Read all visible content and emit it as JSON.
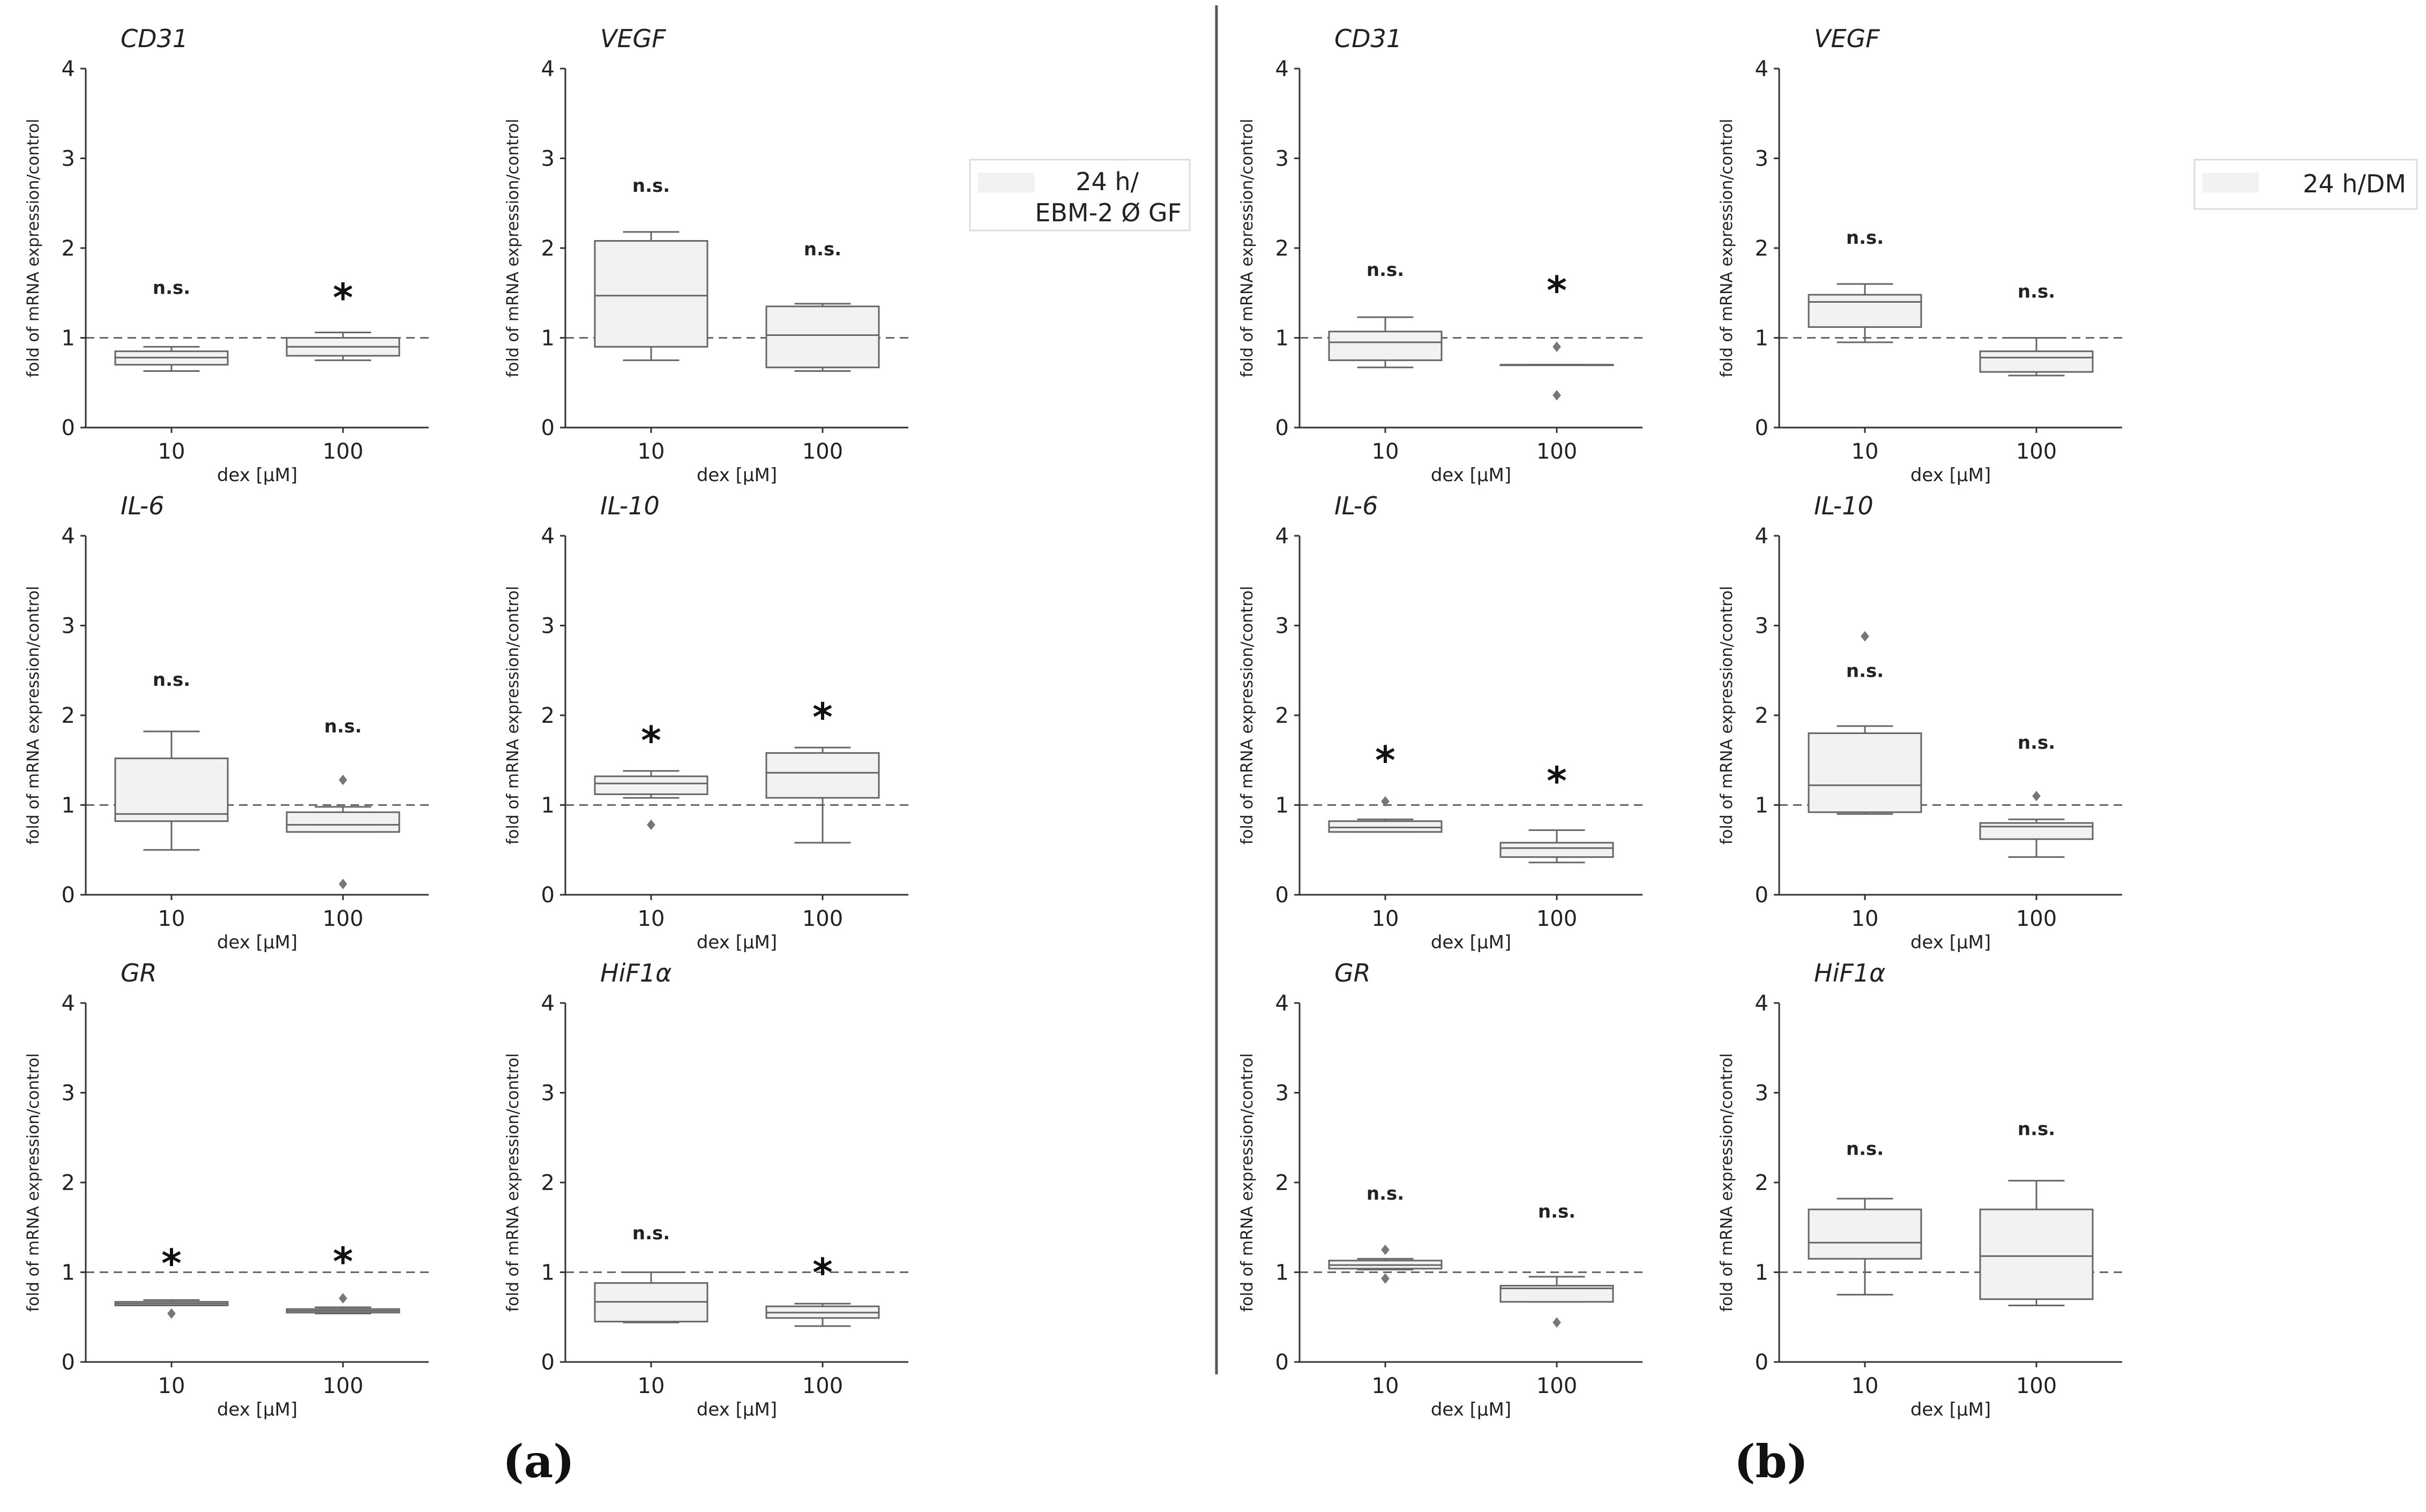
{
  "figure": {
    "panel_labels": [
      "(a)",
      "(b)"
    ],
    "legend_a": {
      "line1": "24 h/",
      "line2": "EBM-2 Ø GF"
    },
    "legend_b": {
      "text": "24 h/DM"
    }
  },
  "chart_data": [
    {
      "type": "box",
      "panel": "a",
      "gene": "CD31",
      "ylabel": "fold of mRNA expression/control",
      "xlabel": "dex [µM]",
      "ylim": [
        0,
        4
      ],
      "yticks": [
        0,
        1,
        2,
        3,
        4
      ],
      "reference_line": 1,
      "groups": [
        {
          "category": "10",
          "whislo": 0.63,
          "q1": 0.7,
          "med": 0.78,
          "q3": 0.85,
          "whishi": 0.9,
          "fliers": [],
          "annotation": "n.s.",
          "annotation_y": 1.56
        },
        {
          "category": "100",
          "whislo": 0.75,
          "q1": 0.8,
          "med": 0.9,
          "q3": 1.0,
          "whishi": 1.06,
          "fliers": [],
          "annotation": "*",
          "annotation_y": 1.55
        }
      ]
    },
    {
      "type": "box",
      "panel": "a",
      "gene": "VEGF",
      "ylabel": "fold of mRNA expression/control",
      "xlabel": "dex [µM]",
      "ylim": [
        0,
        4
      ],
      "yticks": [
        0,
        1,
        2,
        3,
        4
      ],
      "reference_line": 1,
      "groups": [
        {
          "category": "10",
          "whislo": 0.75,
          "q1": 0.9,
          "med": 1.47,
          "q3": 2.08,
          "whishi": 2.18,
          "fliers": [],
          "annotation": "n.s.",
          "annotation_y": 2.7
        },
        {
          "category": "100",
          "whislo": 0.63,
          "q1": 0.67,
          "med": 1.03,
          "q3": 1.35,
          "whishi": 1.38,
          "fliers": [],
          "annotation": "n.s.",
          "annotation_y": 1.99
        }
      ]
    },
    {
      "type": "box",
      "panel": "a",
      "gene": "IL-6",
      "ylabel": "fold of mRNA expression/control",
      "xlabel": "dex [µM]",
      "ylim": [
        0,
        4
      ],
      "yticks": [
        0,
        1,
        2,
        3,
        4
      ],
      "reference_line": 1,
      "groups": [
        {
          "category": "10",
          "whislo": 0.5,
          "q1": 0.82,
          "med": 0.9,
          "q3": 1.52,
          "whishi": 1.82,
          "fliers": [],
          "annotation": "n.s.",
          "annotation_y": 2.4
        },
        {
          "category": "100",
          "whislo": 0.7,
          "q1": 0.7,
          "med": 0.78,
          "q3": 0.92,
          "whishi": 0.98,
          "fliers": [
            1.28,
            0.12
          ],
          "annotation": "n.s.",
          "annotation_y": 1.88
        }
      ]
    },
    {
      "type": "box",
      "panel": "a",
      "gene": "IL-10",
      "ylabel": "fold of mRNA expression/control",
      "xlabel": "dex [µM]",
      "ylim": [
        0,
        4
      ],
      "yticks": [
        0,
        1,
        2,
        3,
        4
      ],
      "reference_line": 1,
      "groups": [
        {
          "category": "10",
          "whislo": 1.08,
          "q1": 1.12,
          "med": 1.24,
          "q3": 1.32,
          "whishi": 1.38,
          "fliers": [
            0.78
          ],
          "annotation": "*",
          "annotation_y": 1.82
        },
        {
          "category": "100",
          "whislo": 0.58,
          "q1": 1.08,
          "med": 1.36,
          "q3": 1.58,
          "whishi": 1.64,
          "fliers": [],
          "annotation": "*",
          "annotation_y": 2.08
        }
      ]
    },
    {
      "type": "box",
      "panel": "a",
      "gene": "GR",
      "ylabel": "fold of mRNA expression/control",
      "xlabel": "dex [µM]",
      "ylim": [
        0,
        4
      ],
      "yticks": [
        0,
        1,
        2,
        3,
        4
      ],
      "reference_line": 1,
      "groups": [
        {
          "category": "10",
          "whislo": 0.63,
          "q1": 0.63,
          "med": 0.65,
          "q3": 0.67,
          "whishi": 0.69,
          "fliers": [
            0.54
          ],
          "annotation": "*",
          "annotation_y": 1.2
        },
        {
          "category": "100",
          "whislo": 0.54,
          "q1": 0.55,
          "med": 0.57,
          "q3": 0.59,
          "whishi": 0.61,
          "fliers": [
            0.71
          ],
          "annotation": "*",
          "annotation_y": 1.22
        }
      ]
    },
    {
      "type": "box",
      "panel": "a",
      "gene": "HiF1α",
      "ylabel": "fold of mRNA expression/control",
      "xlabel": "dex [µM]",
      "ylim": [
        0,
        4
      ],
      "yticks": [
        0,
        1,
        2,
        3,
        4
      ],
      "reference_line": 1,
      "groups": [
        {
          "category": "10",
          "whislo": 0.44,
          "q1": 0.45,
          "med": 0.67,
          "q3": 0.88,
          "whishi": 1.0,
          "fliers": [],
          "annotation": "n.s.",
          "annotation_y": 1.44
        },
        {
          "category": "100",
          "whislo": 0.4,
          "q1": 0.49,
          "med": 0.55,
          "q3": 0.62,
          "whishi": 0.65,
          "fliers": [],
          "annotation": "*",
          "annotation_y": 1.1
        }
      ]
    },
    {
      "type": "box",
      "panel": "b",
      "gene": "CD31",
      "ylabel": "fold of mRNA expression/control",
      "xlabel": "dex [µM]",
      "ylim": [
        0,
        4
      ],
      "yticks": [
        0,
        1,
        2,
        3,
        4
      ],
      "reference_line": 1,
      "groups": [
        {
          "category": "10",
          "whislo": 0.67,
          "q1": 0.75,
          "med": 0.95,
          "q3": 1.07,
          "whishi": 1.23,
          "fliers": [],
          "annotation": "n.s.",
          "annotation_y": 1.76
        },
        {
          "category": "100",
          "whislo": 0.7,
          "q1": 0.7,
          "med": 0.7,
          "q3": 0.7,
          "whishi": 0.7,
          "fliers": [
            0.9,
            0.36
          ],
          "annotation": "*",
          "annotation_y": 1.63
        }
      ]
    },
    {
      "type": "box",
      "panel": "b",
      "gene": "VEGF",
      "ylabel": "fold of mRNA expression/control",
      "xlabel": "dex [µM]",
      "ylim": [
        0,
        4
      ],
      "yticks": [
        0,
        1,
        2,
        3,
        4
      ],
      "reference_line": 1,
      "groups": [
        {
          "category": "10",
          "whislo": 0.95,
          "q1": 1.12,
          "med": 1.4,
          "q3": 1.48,
          "whishi": 1.6,
          "fliers": [],
          "annotation": "n.s.",
          "annotation_y": 2.12
        },
        {
          "category": "100",
          "whislo": 0.58,
          "q1": 0.62,
          "med": 0.78,
          "q3": 0.85,
          "whishi": 1.0,
          "fliers": [],
          "annotation": "n.s.",
          "annotation_y": 1.52
        }
      ]
    },
    {
      "type": "box",
      "panel": "b",
      "gene": "IL-6",
      "ylabel": "fold of mRNA expression/control",
      "xlabel": "dex [µM]",
      "ylim": [
        0,
        4
      ],
      "yticks": [
        0,
        1,
        2,
        3,
        4
      ],
      "reference_line": 1,
      "groups": [
        {
          "category": "10",
          "whislo": 0.7,
          "q1": 0.7,
          "med": 0.75,
          "q3": 0.82,
          "whishi": 0.84,
          "fliers": [
            1.04
          ],
          "annotation": "*",
          "annotation_y": 1.6
        },
        {
          "category": "100",
          "whislo": 0.36,
          "q1": 0.42,
          "med": 0.52,
          "q3": 0.58,
          "whishi": 0.72,
          "fliers": [],
          "annotation": "*",
          "annotation_y": 1.37
        }
      ]
    },
    {
      "type": "box",
      "panel": "b",
      "gene": "IL-10",
      "ylabel": "fold of mRNA expression/control",
      "xlabel": "dex [µM]",
      "ylim": [
        0,
        4
      ],
      "yticks": [
        0,
        1,
        2,
        3,
        4
      ],
      "reference_line": 1,
      "groups": [
        {
          "category": "10",
          "whislo": 0.9,
          "q1": 0.92,
          "med": 1.22,
          "q3": 1.8,
          "whishi": 1.88,
          "fliers": [
            2.88
          ],
          "annotation": "n.s.",
          "annotation_y": 2.5
        },
        {
          "category": "100",
          "whislo": 0.42,
          "q1": 0.62,
          "med": 0.76,
          "q3": 0.8,
          "whishi": 0.84,
          "fliers": [
            1.1
          ],
          "annotation": "n.s.",
          "annotation_y": 1.7
        }
      ]
    },
    {
      "type": "box",
      "panel": "b",
      "gene": "GR",
      "ylabel": "fold of mRNA expression/control",
      "xlabel": "dex [µM]",
      "ylim": [
        0,
        4
      ],
      "yticks": [
        0,
        1,
        2,
        3,
        4
      ],
      "reference_line": 1,
      "groups": [
        {
          "category": "10",
          "whislo": 1.03,
          "q1": 1.04,
          "med": 1.08,
          "q3": 1.13,
          "whishi": 1.15,
          "fliers": [
            1.25,
            0.93
          ],
          "annotation": "n.s.",
          "annotation_y": 1.88
        },
        {
          "category": "100",
          "whislo": 0.67,
          "q1": 0.67,
          "med": 0.82,
          "q3": 0.85,
          "whishi": 0.95,
          "fliers": [
            0.44
          ],
          "annotation": "n.s.",
          "annotation_y": 1.68
        }
      ]
    },
    {
      "type": "box",
      "panel": "b",
      "gene": "HiF1α",
      "ylabel": "fold of mRNA expression/control",
      "xlabel": "dex [µM]",
      "ylim": [
        0,
        4
      ],
      "yticks": [
        0,
        1,
        2,
        3,
        4
      ],
      "reference_line": 1,
      "groups": [
        {
          "category": "10",
          "whislo": 0.75,
          "q1": 1.15,
          "med": 1.33,
          "q3": 1.7,
          "whishi": 1.82,
          "fliers": [],
          "annotation": "n.s.",
          "annotation_y": 2.38
        },
        {
          "category": "100",
          "whislo": 0.63,
          "q1": 0.7,
          "med": 1.18,
          "q3": 1.7,
          "whishi": 2.02,
          "fliers": [],
          "annotation": "n.s.",
          "annotation_y": 2.6
        }
      ]
    }
  ]
}
